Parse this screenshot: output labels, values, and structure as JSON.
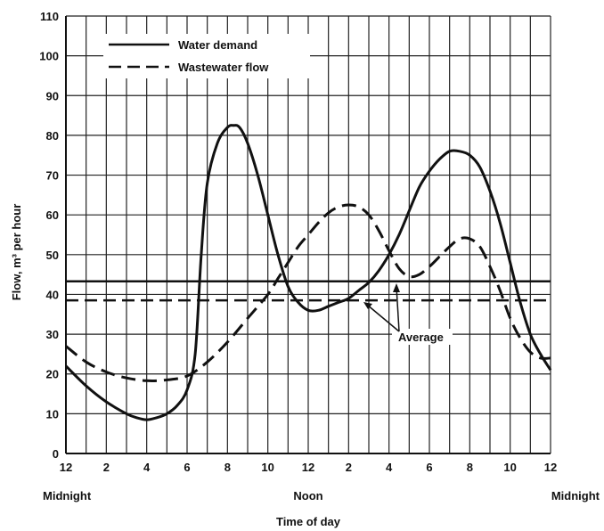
{
  "chart_data": {
    "type": "line",
    "xlabel": "Time of day",
    "ylabel": "Flow, m³ per hour",
    "xlim": [
      0,
      24
    ],
    "ylim": [
      0,
      110
    ],
    "grid": true,
    "legend_position": "top-left",
    "x_tick_labels": [
      "12",
      "2",
      "4",
      "6",
      "8",
      "10",
      "12",
      "2",
      "4",
      "6",
      "8",
      "10",
      "12"
    ],
    "x_tick_values": [
      0,
      2,
      4,
      6,
      8,
      10,
      12,
      14,
      16,
      18,
      20,
      22,
      24
    ],
    "x_sub_labels": [
      {
        "x": 0,
        "text": "Midnight"
      },
      {
        "x": 12,
        "text": "Noon"
      },
      {
        "x": 24,
        "text": "Midnight"
      }
    ],
    "y_ticks": [
      0,
      10,
      20,
      30,
      40,
      50,
      60,
      70,
      80,
      90,
      100,
      110
    ],
    "series": [
      {
        "name": "Water demand",
        "style": "solid",
        "x": [
          0,
          1,
          2,
          3,
          3.5,
          4,
          4.5,
          5,
          5.5,
          6,
          6.4,
          6.7,
          7,
          7.5,
          8,
          8.3,
          8.6,
          9,
          9.5,
          10,
          10.5,
          11,
          11.5,
          12,
          12.5,
          13,
          13.5,
          14,
          14.5,
          15,
          15.5,
          16,
          16.5,
          17,
          17.5,
          18,
          18.5,
          19,
          19.5,
          20,
          20.5,
          21,
          21.5,
          22,
          22.5,
          23,
          23.5,
          24
        ],
        "values": [
          22,
          17,
          13,
          10,
          9,
          8.5,
          9,
          10,
          12,
          16,
          25,
          50,
          68,
          78,
          82,
          82.5,
          82,
          78,
          70,
          60,
          50,
          42,
          38,
          36,
          36,
          37,
          38,
          39,
          41,
          43,
          46,
          50,
          55,
          61,
          67,
          71,
          74,
          76,
          76,
          75,
          72,
          66,
          58,
          48,
          38,
          30,
          25,
          21
        ]
      },
      {
        "name": "Wastewater flow",
        "style": "dashed",
        "x": [
          0,
          1,
          2,
          3,
          4,
          5,
          6,
          7,
          8,
          9,
          10,
          10.5,
          11,
          11.5,
          12,
          12.5,
          13,
          13.5,
          14,
          14.5,
          15,
          15.5,
          16,
          16.5,
          17,
          17.5,
          18,
          18.5,
          19,
          19.5,
          20,
          20.5,
          21,
          21.5,
          22,
          22.5,
          23,
          23.5,
          24
        ],
        "values": [
          27,
          23,
          20.5,
          19,
          18.3,
          18.5,
          19.5,
          23,
          28,
          34,
          40,
          44,
          48,
          52,
          55,
          58,
          60.5,
          62,
          62.5,
          62,
          60,
          56,
          51,
          46.5,
          44.5,
          45,
          47,
          49.5,
          52,
          54,
          54,
          52,
          47,
          41,
          34,
          29,
          25.5,
          24,
          24
        ]
      }
    ],
    "average_lines": [
      {
        "series": "Water demand",
        "value": 43.3,
        "style": "solid"
      },
      {
        "series": "Wastewater flow",
        "value": 38.5,
        "style": "dashed"
      }
    ],
    "annotation": {
      "text": "Average",
      "x": 17.2,
      "y": 30
    }
  }
}
